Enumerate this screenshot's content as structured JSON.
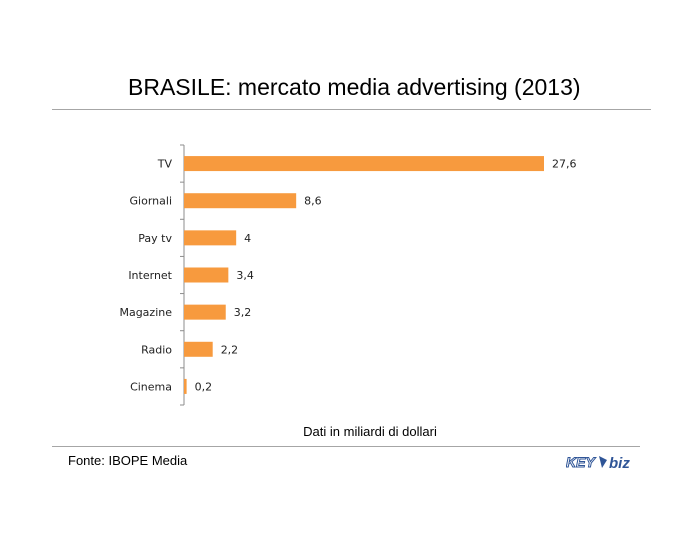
{
  "title": "BRASILE: mercato media advertising (2013)",
  "note": "Dati in miliardi di dollari",
  "source": "Fonte: IBOPE Media",
  "logo": {
    "text_left": "KEY",
    "text_right": "biz"
  },
  "colors": {
    "bar": "#f79a3e",
    "axis": "#8c8c8c",
    "logo_blue": "#2f5597"
  },
  "chart_data": {
    "type": "bar",
    "orientation": "horizontal",
    "categories": [
      "TV",
      "Giornali",
      "Pay tv",
      "Internet",
      "Magazine",
      "Radio",
      "Cinema"
    ],
    "values": [
      27.6,
      8.6,
      4,
      3.4,
      3.2,
      2.2,
      0.2
    ],
    "value_labels": [
      "27,6",
      "8,6",
      "4",
      "3,4",
      "3,2",
      "2,2",
      "0,2"
    ],
    "xlabel": "Dati in miliardi di dollari",
    "ylabel": "",
    "xlim": [
      0,
      27.6
    ],
    "grid": false,
    "legend": "none"
  }
}
